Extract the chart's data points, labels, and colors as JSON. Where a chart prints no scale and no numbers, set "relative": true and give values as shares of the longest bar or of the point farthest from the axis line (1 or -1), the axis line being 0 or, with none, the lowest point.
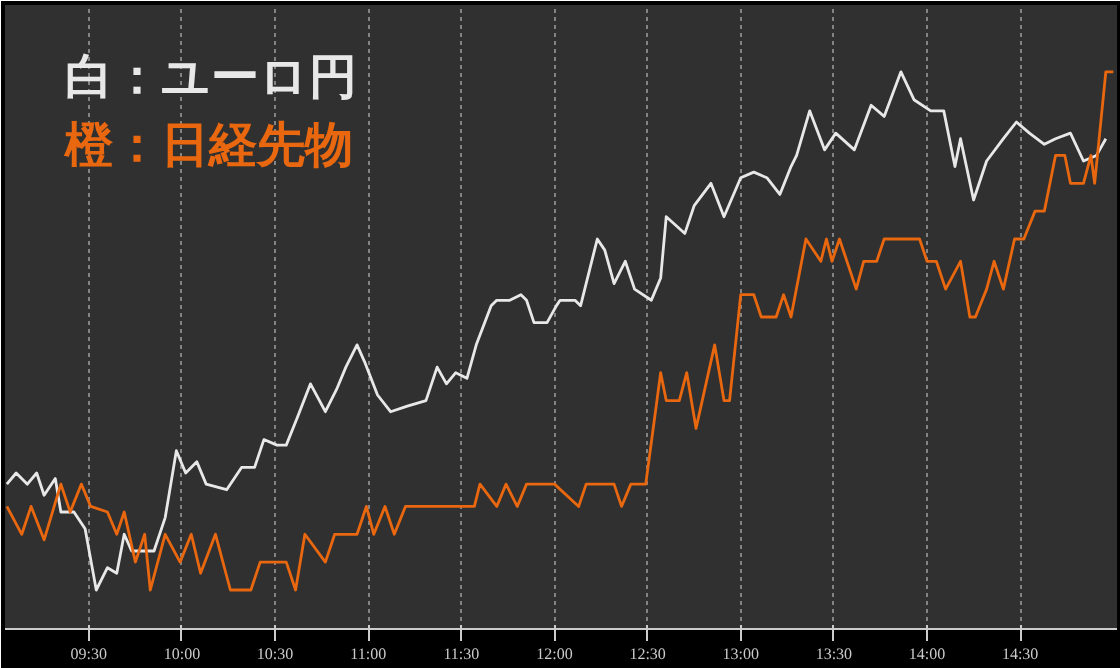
{
  "chart_data": {
    "type": "line",
    "relative": true,
    "legend": "top left",
    "grid": "x",
    "marker": "none",
    "line_style": "solid",
    "xlim": [
      9.05,
      15.02
    ],
    "xticks": [
      {
        "value": 9.5,
        "label": "09:30"
      },
      {
        "value": 10,
        "label": "10:00"
      },
      {
        "value": 10.5,
        "label": "10:30"
      },
      {
        "value": 11,
        "label": "11:00"
      },
      {
        "value": 11.5,
        "label": "11:30"
      },
      {
        "value": 12,
        "label": "12:00"
      },
      {
        "value": 12.5,
        "label": "12:30"
      },
      {
        "value": 13,
        "label": "13:00"
      },
      {
        "value": 13.5,
        "label": "13:30"
      },
      {
        "value": 14,
        "label": "14:00"
      },
      {
        "value": 14.5,
        "label": "14:30"
      }
    ],
    "series": [
      {
        "name": "白：ユーロ円",
        "color": "#e8e8e8",
        "x": [
          9.06,
          9.11,
          9.17,
          9.22,
          9.26,
          9.32,
          9.35,
          9.42,
          9.48,
          9.54,
          9.6,
          9.65,
          9.69,
          9.73,
          9.85,
          9.91,
          9.97,
          10.02,
          10.08,
          10.13,
          10.24,
          10.32,
          10.39,
          10.44,
          10.51,
          10.56,
          10.62,
          10.69,
          10.77,
          10.83,
          10.88,
          10.94,
          10.98,
          11.05,
          11.12,
          11.21,
          11.31,
          11.37,
          11.42,
          11.47,
          11.53,
          11.58,
          11.66,
          11.69,
          11.76,
          11.82,
          11.85,
          11.89,
          11.96,
          12.01,
          12.03,
          12.11,
          12.14,
          12.23,
          12.27,
          12.32,
          12.38,
          12.43,
          12.52,
          12.57,
          12.6,
          12.7,
          12.75,
          12.84,
          12.91,
          13.0,
          13.07,
          13.14,
          13.21,
          13.27,
          13.3,
          13.37,
          13.45,
          13.51,
          13.61,
          13.7,
          13.77,
          13.86,
          13.93,
          14.02,
          14.09,
          14.15,
          14.18,
          14.25,
          14.32,
          14.41,
          14.48,
          14.55,
          14.63,
          14.69,
          14.77,
          14.84,
          14.91,
          14.96
        ],
        "values": [
          0.26,
          0.28,
          0.26,
          0.28,
          0.24,
          0.27,
          0.21,
          0.21,
          0.18,
          0.07,
          0.11,
          0.1,
          0.17,
          0.14,
          0.14,
          0.2,
          0.32,
          0.28,
          0.3,
          0.26,
          0.25,
          0.29,
          0.29,
          0.34,
          0.33,
          0.33,
          0.38,
          0.44,
          0.39,
          0.43,
          0.47,
          0.51,
          0.48,
          0.42,
          0.39,
          0.4,
          0.41,
          0.47,
          0.44,
          0.46,
          0.45,
          0.51,
          0.58,
          0.59,
          0.59,
          0.6,
          0.59,
          0.55,
          0.55,
          0.58,
          0.59,
          0.59,
          0.58,
          0.7,
          0.68,
          0.62,
          0.66,
          0.61,
          0.59,
          0.63,
          0.74,
          0.71,
          0.76,
          0.8,
          0.74,
          0.81,
          0.82,
          0.81,
          0.78,
          0.83,
          0.85,
          0.93,
          0.86,
          0.89,
          0.86,
          0.94,
          0.92,
          1.0,
          0.95,
          0.93,
          0.93,
          0.83,
          0.88,
          0.77,
          0.84,
          0.88,
          0.91,
          0.89,
          0.87,
          0.88,
          0.89,
          0.84,
          0.85,
          0.88
        ]
      },
      {
        "name": "橙：日経先物",
        "color": "#e8670f",
        "x": [
          9.06,
          9.14,
          9.19,
          9.26,
          9.35,
          9.4,
          9.46,
          9.51,
          9.6,
          9.65,
          9.69,
          9.75,
          9.8,
          9.83,
          9.91,
          9.99,
          10.05,
          10.1,
          10.18,
          10.26,
          10.37,
          10.42,
          10.56,
          10.61,
          10.66,
          10.77,
          10.82,
          10.94,
          10.99,
          11.03,
          11.09,
          11.14,
          11.2,
          11.57,
          11.6,
          11.69,
          11.74,
          11.8,
          11.85,
          12.0,
          12.13,
          12.17,
          12.32,
          12.36,
          12.41,
          12.49,
          12.57,
          12.6,
          12.67,
          12.71,
          12.76,
          12.86,
          12.91,
          12.94,
          13.0,
          13.07,
          13.11,
          13.19,
          13.23,
          13.27,
          13.35,
          13.43,
          13.46,
          13.49,
          13.53,
          13.62,
          13.66,
          13.73,
          13.77,
          13.96,
          14.0,
          14.05,
          14.1,
          14.18,
          14.23,
          14.26,
          14.32,
          14.36,
          14.41,
          14.47,
          14.52,
          14.58,
          14.63,
          14.69,
          14.74,
          14.77,
          14.84,
          14.88,
          14.9,
          14.96,
          15.0
        ],
        "values": [
          0.22,
          0.17,
          0.22,
          0.16,
          0.26,
          0.21,
          0.26,
          0.22,
          0.21,
          0.17,
          0.21,
          0.12,
          0.17,
          0.07,
          0.17,
          0.12,
          0.17,
          0.1,
          0.17,
          0.07,
          0.07,
          0.12,
          0.12,
          0.07,
          0.17,
          0.12,
          0.17,
          0.17,
          0.22,
          0.17,
          0.22,
          0.17,
          0.22,
          0.22,
          0.26,
          0.22,
          0.26,
          0.22,
          0.26,
          0.26,
          0.22,
          0.26,
          0.26,
          0.22,
          0.26,
          0.26,
          0.46,
          0.41,
          0.41,
          0.46,
          0.36,
          0.51,
          0.41,
          0.41,
          0.6,
          0.6,
          0.56,
          0.56,
          0.6,
          0.56,
          0.7,
          0.66,
          0.7,
          0.66,
          0.7,
          0.61,
          0.66,
          0.66,
          0.7,
          0.7,
          0.66,
          0.66,
          0.61,
          0.66,
          0.56,
          0.56,
          0.61,
          0.66,
          0.61,
          0.7,
          0.7,
          0.75,
          0.75,
          0.85,
          0.85,
          0.8,
          0.8,
          0.85,
          0.8,
          1.0,
          1.0
        ]
      }
    ]
  }
}
